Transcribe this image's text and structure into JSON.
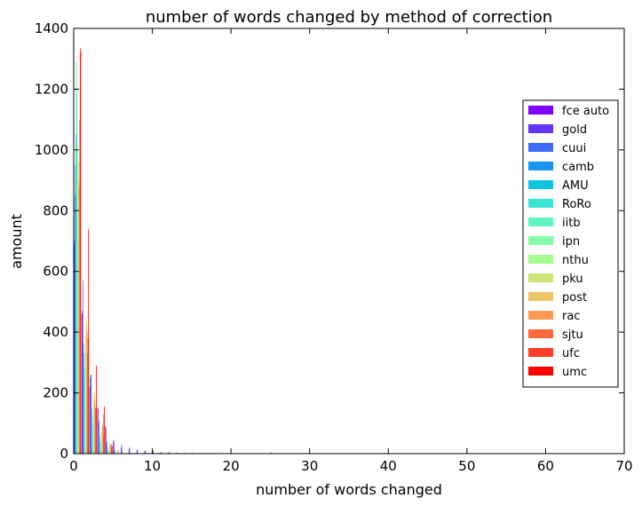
{
  "chart_data": {
    "type": "bar",
    "title": "number of words changed by method of correction",
    "xlabel": "number of words changed",
    "ylabel": "amount",
    "xlim": [
      0,
      70
    ],
    "ylim": [
      0,
      1400
    ],
    "xticks": [
      0,
      10,
      20,
      30,
      40,
      50,
      60,
      70
    ],
    "yticks": [
      0,
      200,
      400,
      600,
      800,
      1000,
      1200,
      1400
    ],
    "grid": false,
    "legend_position": "right",
    "group_width": 0.9,
    "series": [
      {
        "name": "fce auto",
        "color": "#7f00ff",
        "x": [
          0,
          1,
          2,
          3,
          4,
          5,
          6,
          7,
          8,
          9,
          10,
          11,
          12,
          13,
          14,
          15,
          17,
          19,
          21,
          25,
          28
        ],
        "values": [
          700,
          460,
          220,
          150,
          90,
          40,
          20,
          15,
          10,
          8,
          5,
          3,
          3,
          2,
          2,
          2,
          1,
          1,
          1,
          3,
          1
        ]
      },
      {
        "name": "gold",
        "color": "#6236fd",
        "x": [
          0,
          1,
          2,
          3,
          4,
          5,
          6,
          7,
          8,
          9,
          10,
          11,
          12,
          13,
          14,
          15,
          16,
          17,
          18,
          19,
          20,
          21,
          22,
          25,
          26
        ],
        "values": [
          690,
          470,
          250,
          150,
          85,
          45,
          30,
          20,
          15,
          10,
          8,
          6,
          5,
          4,
          3,
          3,
          2,
          2,
          2,
          1,
          1,
          1,
          1,
          4,
          1
        ]
      },
      {
        "name": "cuui",
        "color": "#3d6afa",
        "x": [
          0,
          1,
          2,
          3,
          4,
          5,
          6,
          7
        ],
        "values": [
          850,
          570,
          260,
          110,
          40,
          15,
          5,
          2
        ]
      },
      {
        "name": "camb",
        "color": "#1896f1",
        "x": [
          0,
          1,
          2,
          3,
          4,
          5
        ],
        "values": [
          950,
          360,
          260,
          100,
          35,
          10
        ]
      },
      {
        "name": "AMU",
        "color": "#0fc4e3",
        "x": [
          0,
          1,
          2,
          3,
          4
        ],
        "values": [
          1050,
          330,
          150,
          60,
          20
        ]
      },
      {
        "name": "RoRo",
        "color": "#3ae4d4",
        "x": [
          0,
          1,
          2,
          3,
          4
        ],
        "values": [
          1290,
          280,
          100,
          35,
          10
        ]
      },
      {
        "name": "iitb",
        "color": "#5ef5be",
        "x": [
          0,
          1,
          2,
          3
        ],
        "values": [
          1200,
          250,
          80,
          20
        ]
      },
      {
        "name": "ipn",
        "color": "#85fda6",
        "x": [
          0,
          1,
          2,
          3,
          4
        ],
        "values": [
          980,
          360,
          130,
          40,
          10
        ]
      },
      {
        "name": "nthu",
        "color": "#a6fc8e",
        "x": [
          0,
          1,
          2,
          3,
          4,
          5
        ],
        "values": [
          1020,
          390,
          180,
          70,
          25,
          8
        ]
      },
      {
        "name": "pku",
        "color": "#cce478",
        "x": [
          0,
          1,
          2,
          3,
          4,
          5
        ],
        "values": [
          960,
          450,
          200,
          90,
          30,
          10
        ]
      },
      {
        "name": "post",
        "color": "#ecc466",
        "x": [
          0,
          1,
          2,
          3,
          4,
          5
        ],
        "values": [
          900,
          430,
          200,
          100,
          35,
          12
        ]
      },
      {
        "name": "rac",
        "color": "#ff9a54",
        "x": [
          0,
          1,
          2,
          3,
          4,
          5
        ],
        "values": [
          880,
          400,
          170,
          90,
          30,
          10
        ]
      },
      {
        "name": "sjtu",
        "color": "#ff6a3d",
        "x": [
          0,
          1,
          2,
          3,
          4
        ],
        "values": [
          1100,
          330,
          150,
          60,
          20
        ]
      },
      {
        "name": "ufc",
        "color": "#ff3c24",
        "x": [
          0,
          1,
          2,
          3,
          4
        ],
        "values": [
          1320,
          380,
          150,
          130,
          30
        ]
      },
      {
        "name": "umc",
        "color": "#ff0000",
        "x": [
          0,
          1,
          2,
          3,
          4
        ],
        "values": [
          1335,
          740,
          290,
          155,
          25
        ]
      }
    ]
  }
}
